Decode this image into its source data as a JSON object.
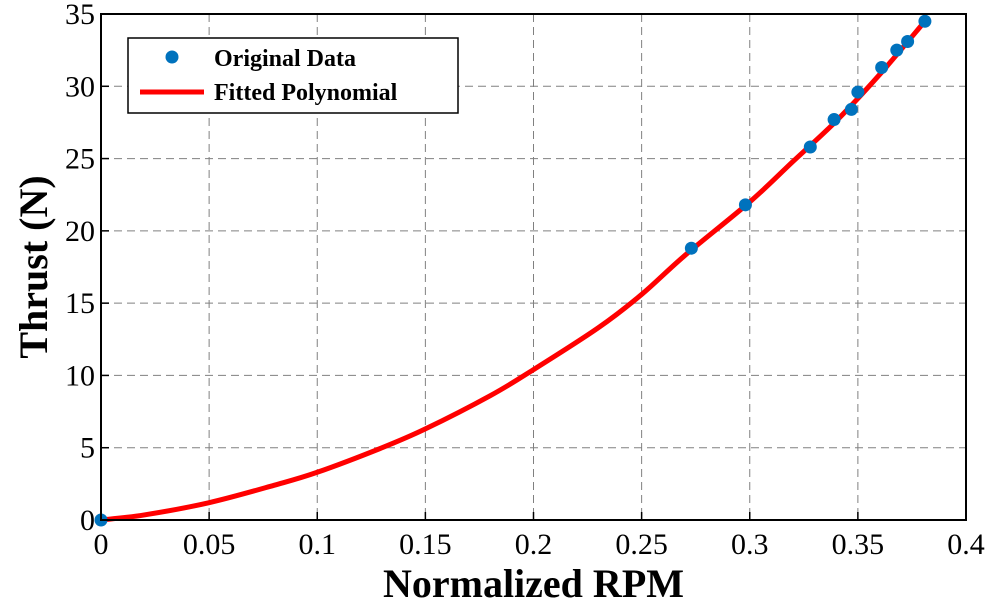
{
  "chart_data": {
    "type": "line",
    "xlabel": "Normalized RPM",
    "ylabel": "Thrust (N)",
    "xlim": [
      0,
      0.4
    ],
    "ylim": [
      0,
      35
    ],
    "x_ticks": [
      "0",
      "0.05",
      "0.1",
      "0.15",
      "0.2",
      "0.25",
      "0.3",
      "0.35",
      "0.4"
    ],
    "y_ticks": [
      "0",
      "5",
      "10",
      "15",
      "20",
      "25",
      "30",
      "35"
    ],
    "grid": true,
    "legend_position": "top-left",
    "series": [
      {
        "name": "Original Data",
        "kind": "scatter",
        "color": "#0072BD",
        "x": [
          0,
          0.273,
          0.298,
          0.328,
          0.339,
          0.347,
          0.35,
          0.361,
          0.368,
          0.373,
          0.381
        ],
        "y": [
          0,
          18.8,
          21.8,
          25.8,
          27.7,
          28.4,
          29.6,
          31.3,
          32.5,
          33.1,
          34.5
        ]
      },
      {
        "name": "Fitted Polynomial",
        "kind": "line",
        "color": "#FF0000",
        "x": [
          0,
          0.02,
          0.05,
          0.08,
          0.1,
          0.13,
          0.15,
          0.18,
          0.2,
          0.23,
          0.25,
          0.27,
          0.3,
          0.32,
          0.34,
          0.36,
          0.381
        ],
        "y": [
          0,
          0.35,
          1.2,
          2.4,
          3.3,
          5.0,
          6.3,
          8.6,
          10.4,
          13.3,
          15.6,
          18.3,
          22.0,
          24.8,
          27.6,
          30.8,
          34.5
        ]
      }
    ]
  }
}
